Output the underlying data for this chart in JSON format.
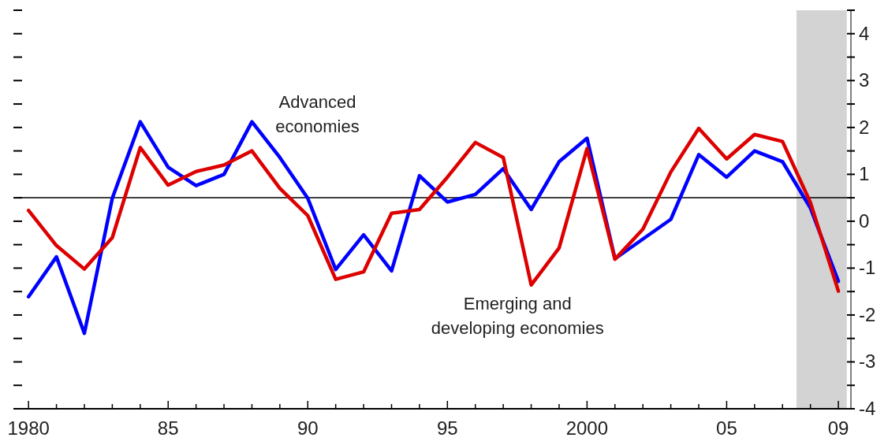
{
  "chart_data": {
    "type": "line",
    "x": [
      1980,
      1981,
      1982,
      1983,
      1984,
      1985,
      1986,
      1987,
      1988,
      1989,
      1990,
      1991,
      1992,
      1993,
      1994,
      1995,
      1996,
      1997,
      1998,
      1999,
      2000,
      2001,
      2002,
      2003,
      2004,
      2005,
      2006,
      2007,
      2008,
      2009
    ],
    "series": [
      {
        "name": "Advanced economies",
        "color": "#0000ff",
        "values": [
          -1.61,
          -0.76,
          -2.39,
          0.49,
          2.12,
          1.15,
          0.76,
          1.0,
          2.12,
          1.36,
          0.49,
          -1.03,
          -0.29,
          -1.06,
          0.97,
          0.41,
          0.57,
          1.12,
          0.25,
          1.27,
          1.77,
          -0.8,
          -0.38,
          0.04,
          1.42,
          0.94,
          1.5,
          1.27,
          0.28,
          -1.28
        ]
      },
      {
        "name": "Emerging and developing economies",
        "color": "#dd0000",
        "values": [
          0.23,
          -0.52,
          -1.02,
          -0.35,
          1.57,
          0.77,
          1.06,
          1.2,
          1.5,
          0.7,
          0.12,
          -1.24,
          -1.08,
          0.17,
          0.25,
          0.94,
          1.68,
          1.36,
          -1.36,
          -0.57,
          1.55,
          -0.81,
          -0.17,
          1.05,
          1.98,
          1.33,
          1.85,
          1.7,
          0.4,
          -1.49
        ]
      }
    ],
    "xlim": [
      1979.6,
      2009.45
    ],
    "xticks": [
      {
        "value": 1980,
        "label": "1980"
      },
      {
        "value": 1981,
        "label": null
      },
      {
        "value": 1982,
        "label": null
      },
      {
        "value": 1983,
        "label": null
      },
      {
        "value": 1984,
        "label": null
      },
      {
        "value": 1985,
        "label": "85"
      },
      {
        "value": 1986,
        "label": null
      },
      {
        "value": 1987,
        "label": null
      },
      {
        "value": 1988,
        "label": null
      },
      {
        "value": 1989,
        "label": null
      },
      {
        "value": 1990,
        "label": "90"
      },
      {
        "value": 1991,
        "label": null
      },
      {
        "value": 1992,
        "label": null
      },
      {
        "value": 1993,
        "label": null
      },
      {
        "value": 1994,
        "label": null
      },
      {
        "value": 1995,
        "label": "95"
      },
      {
        "value": 1996,
        "label": null
      },
      {
        "value": 1997,
        "label": null
      },
      {
        "value": 1998,
        "label": null
      },
      {
        "value": 1999,
        "label": null
      },
      {
        "value": 2000,
        "label": "2000"
      },
      {
        "value": 2001,
        "label": null
      },
      {
        "value": 2002,
        "label": null
      },
      {
        "value": 2003,
        "label": null
      },
      {
        "value": 2004,
        "label": null
      },
      {
        "value": 2005,
        "label": "05"
      },
      {
        "value": 2006,
        "label": null
      },
      {
        "value": 2007,
        "label": null
      },
      {
        "value": 2008,
        "label": null
      },
      {
        "value": 2009,
        "label": "09"
      }
    ],
    "ylim": [
      -4,
      4.5
    ],
    "yticks": [
      {
        "value": 4.5,
        "label": null
      },
      4,
      {
        "value": 3.5,
        "label": null
      },
      3,
      {
        "value": 2.5,
        "label": null
      },
      2,
      {
        "value": 1.5,
        "label": null
      },
      1,
      {
        "value": 0.5,
        "label": null
      },
      0,
      {
        "value": -0.5,
        "label": null
      },
      -1,
      {
        "value": -1.5,
        "label": null
      },
      -2,
      {
        "value": -2.5,
        "label": null
      },
      -3,
      {
        "value": -3.5,
        "label": null
      },
      -4
    ],
    "ref_lines": [
      {
        "axis": "y",
        "value": 0.5,
        "color": "#000000"
      }
    ],
    "bands": [
      {
        "axis": "x",
        "from": 2007.5,
        "to": 2009.3,
        "color": "#d3d3d3"
      }
    ],
    "grid": false,
    "legend": false,
    "marker": "none",
    "line_style": "solid"
  }
}
